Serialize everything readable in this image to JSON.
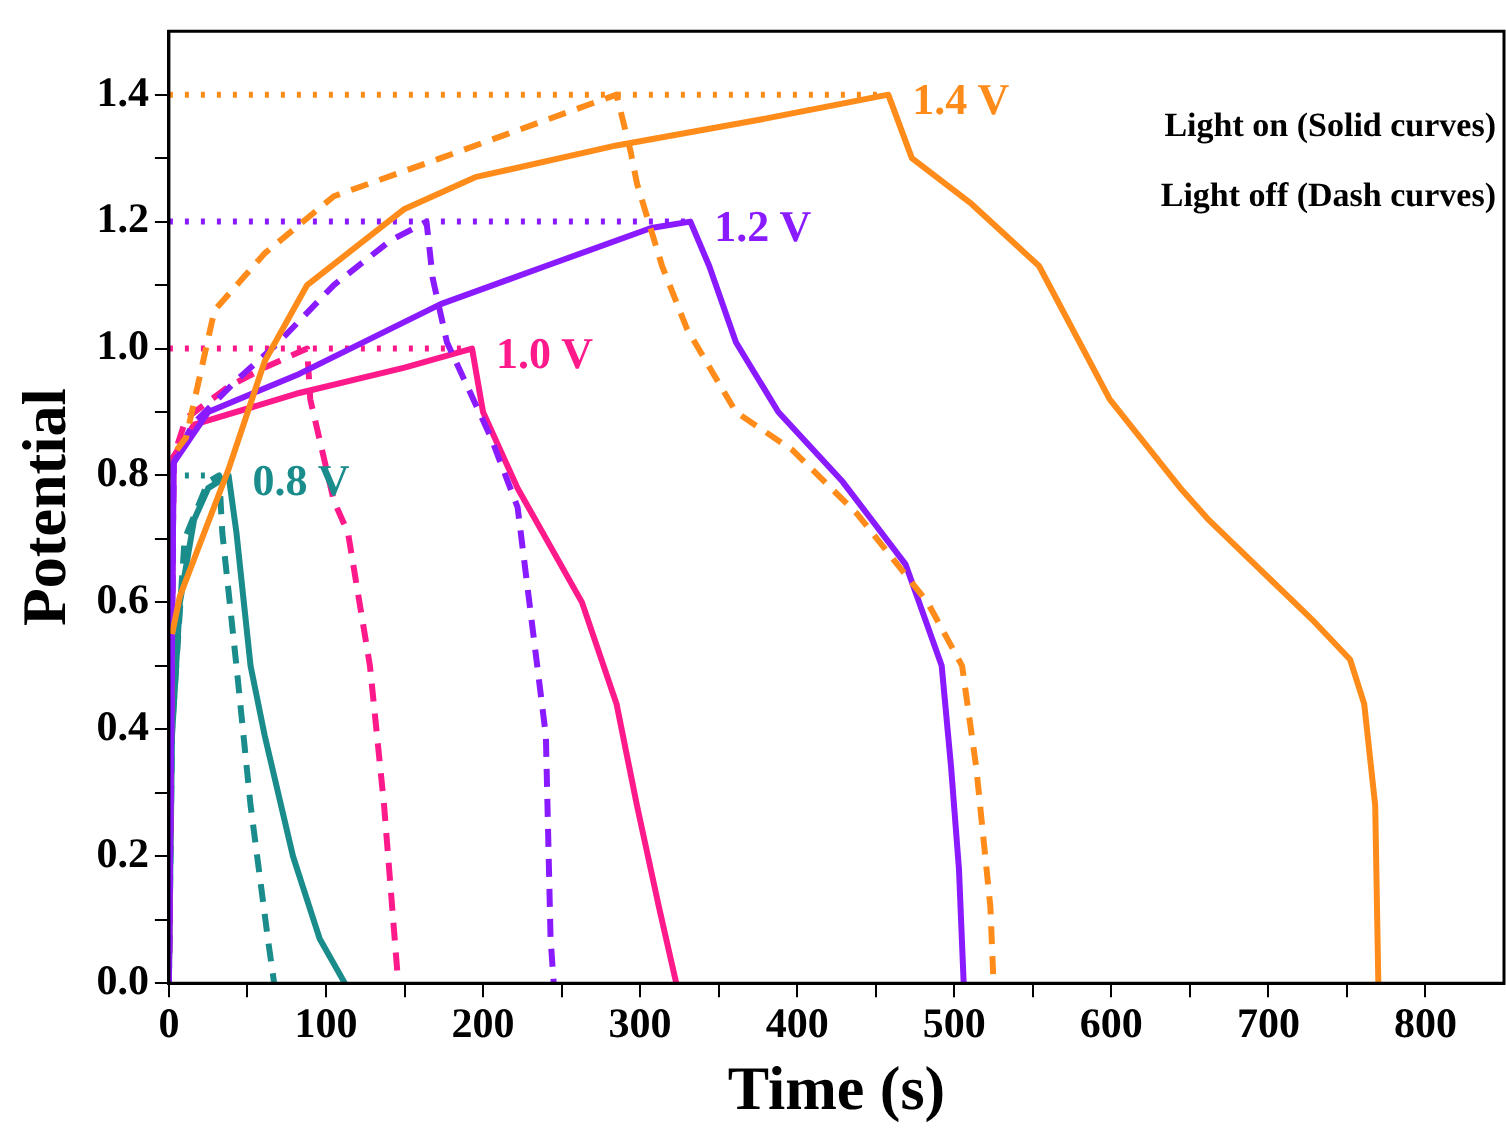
{
  "chart_data": {
    "type": "line",
    "xlabel": "Time (s)",
    "ylabel": "Potential",
    "xlim": [
      0,
      850
    ],
    "ylim": [
      0,
      1.5
    ],
    "xticks": [
      0,
      {
        "value": 50,
        "label": null
      },
      100,
      {
        "value": 150,
        "label": null
      },
      200,
      {
        "value": 250,
        "label": null
      },
      300,
      {
        "value": 350,
        "label": null
      },
      400,
      {
        "value": 450,
        "label": null
      },
      500,
      {
        "value": 550,
        "label": null
      },
      600,
      {
        "value": 650,
        "label": null
      },
      700,
      {
        "value": 750,
        "label": null
      },
      800
    ],
    "yticks": [
      {
        "value": 0,
        "label": "0.0"
      },
      {
        "value": 0.1,
        "label": null
      },
      {
        "value": 0.2,
        "label": "0.2"
      },
      {
        "value": 0.3,
        "label": null
      },
      {
        "value": 0.4,
        "label": "0.4"
      },
      {
        "value": 0.5,
        "label": null
      },
      {
        "value": 0.6,
        "label": "0.6"
      },
      {
        "value": 0.7,
        "label": null
      },
      {
        "value": 0.8,
        "label": "0.8"
      },
      {
        "value": 0.9,
        "label": null
      },
      {
        "value": 1.0,
        "label": "1.0"
      },
      {
        "value": 1.1,
        "label": null
      },
      {
        "value": 1.2,
        "label": "1.2"
      },
      {
        "value": 1.3,
        "label": null
      },
      {
        "value": 1.4,
        "label": "1.4"
      }
    ],
    "grid": false,
    "legend": false,
    "marker": "none",
    "series": [
      {
        "color": "#ff8c1a",
        "line_style": "dotted",
        "x": [
          0,
          458
        ],
        "values": [
          1.4,
          1.4
        ]
      },
      {
        "color": "#8a1aff",
        "line_style": "dotted",
        "x": [
          0,
          332
        ],
        "values": [
          1.2,
          1.2
        ]
      },
      {
        "color": "#ff1a8c",
        "line_style": "dotted",
        "x": [
          0,
          193
        ],
        "values": [
          1.0,
          1.0
        ]
      },
      {
        "color": "#1a8c8c",
        "line_style": "dotted",
        "x": [
          0,
          30
        ],
        "values": [
          0.8,
          0.8
        ]
      },
      {
        "color": "#1a8c8c",
        "line_style": "solid",
        "x": [
          0,
          2,
          7,
          16,
          25,
          38,
          43,
          52,
          61,
          79,
          96,
          112
        ],
        "values": [
          0,
          0.39,
          0.6,
          0.73,
          0.78,
          0.8,
          0.71,
          0.5,
          0.39,
          0.2,
          0.07,
          0
        ]
      },
      {
        "color": "#1a8c8c",
        "line_style": "dashed",
        "x": [
          0,
          2,
          10,
          25,
          32,
          34,
          43,
          52,
          63,
          67
        ],
        "values": [
          0,
          0.4,
          0.7,
          0.79,
          0.8,
          0.71,
          0.5,
          0.28,
          0.07,
          0
        ]
      },
      {
        "color": "#ff1a8c",
        "line_style": "solid",
        "x": [
          0,
          3,
          16,
          83,
          150,
          193,
          200,
          222,
          263,
          285,
          298,
          312,
          323
        ],
        "values": [
          0,
          0.83,
          0.88,
          0.93,
          0.97,
          1.0,
          0.9,
          0.78,
          0.6,
          0.44,
          0.28,
          0.12,
          0
        ]
      },
      {
        "color": "#ff1a8c",
        "line_style": "dashed",
        "x": [
          0,
          3,
          11,
          38,
          61,
          88,
          90,
          105,
          114,
          128,
          137,
          146
        ],
        "values": [
          0,
          0.83,
          0.89,
          0.94,
          0.97,
          1.0,
          0.92,
          0.76,
          0.71,
          0.5,
          0.28,
          0
        ]
      },
      {
        "color": "#8a1aff",
        "line_style": "solid",
        "x": [
          0,
          3,
          25,
          83,
          173,
          240,
          307,
          332,
          344,
          361,
          388,
          429,
          469,
          492,
          498,
          503,
          506
        ],
        "values": [
          0,
          0.82,
          0.9,
          0.96,
          1.07,
          1.13,
          1.19,
          1.2,
          1.13,
          1.01,
          0.9,
          0.79,
          0.66,
          0.5,
          0.34,
          0.18,
          0
        ]
      },
      {
        "color": "#8a1aff",
        "line_style": "dashed",
        "x": [
          0,
          3,
          15,
          43,
          70,
          105,
          141,
          164,
          168,
          177,
          205,
          222,
          240,
          243,
          245
        ],
        "values": [
          0,
          0.82,
          0.88,
          0.95,
          1.01,
          1.1,
          1.17,
          1.2,
          1.11,
          1.01,
          0.86,
          0.75,
          0.39,
          0.07,
          0
        ]
      },
      {
        "color": "#ff8c1a",
        "line_style": "solid",
        "x": [
          2,
          7,
          38,
          61,
          88,
          150,
          195,
          285,
          375,
          458,
          473,
          510,
          554,
          599,
          644,
          662,
          729,
          752,
          761,
          768,
          770
        ],
        "values": [
          0.55,
          0.61,
          0.81,
          0.98,
          1.1,
          1.22,
          1.27,
          1.32,
          1.36,
          1.4,
          1.3,
          1.23,
          1.13,
          0.92,
          0.78,
          0.73,
          0.57,
          0.51,
          0.44,
          0.28,
          0
        ]
      },
      {
        "color": "#ff8c1a",
        "line_style": "dashed",
        "x": [
          5,
          11,
          29,
          61,
          105,
          173,
          240,
          285,
          294,
          298,
          314,
          330,
          361,
          397,
          438,
          483,
          505,
          514,
          523,
          525
        ],
        "values": [
          0.84,
          0.86,
          1.06,
          1.15,
          1.24,
          1.3,
          1.36,
          1.4,
          1.31,
          1.26,
          1.13,
          1.03,
          0.9,
          0.84,
          0.74,
          0.6,
          0.5,
          0.34,
          0.12,
          0
        ]
      }
    ],
    "annotations": [
      {
        "text": "1.4 V",
        "x": 458,
        "y": 1.4
      },
      {
        "text": "1.2 V",
        "x": 332,
        "y": 1.2
      },
      {
        "text": "1.0 V",
        "x": 193,
        "y": 1.0
      },
      {
        "text": "0.8 V",
        "x": 38,
        "y": 0.8
      },
      "Light on (Solid curves)",
      "Light off (Dash curves)"
    ]
  }
}
